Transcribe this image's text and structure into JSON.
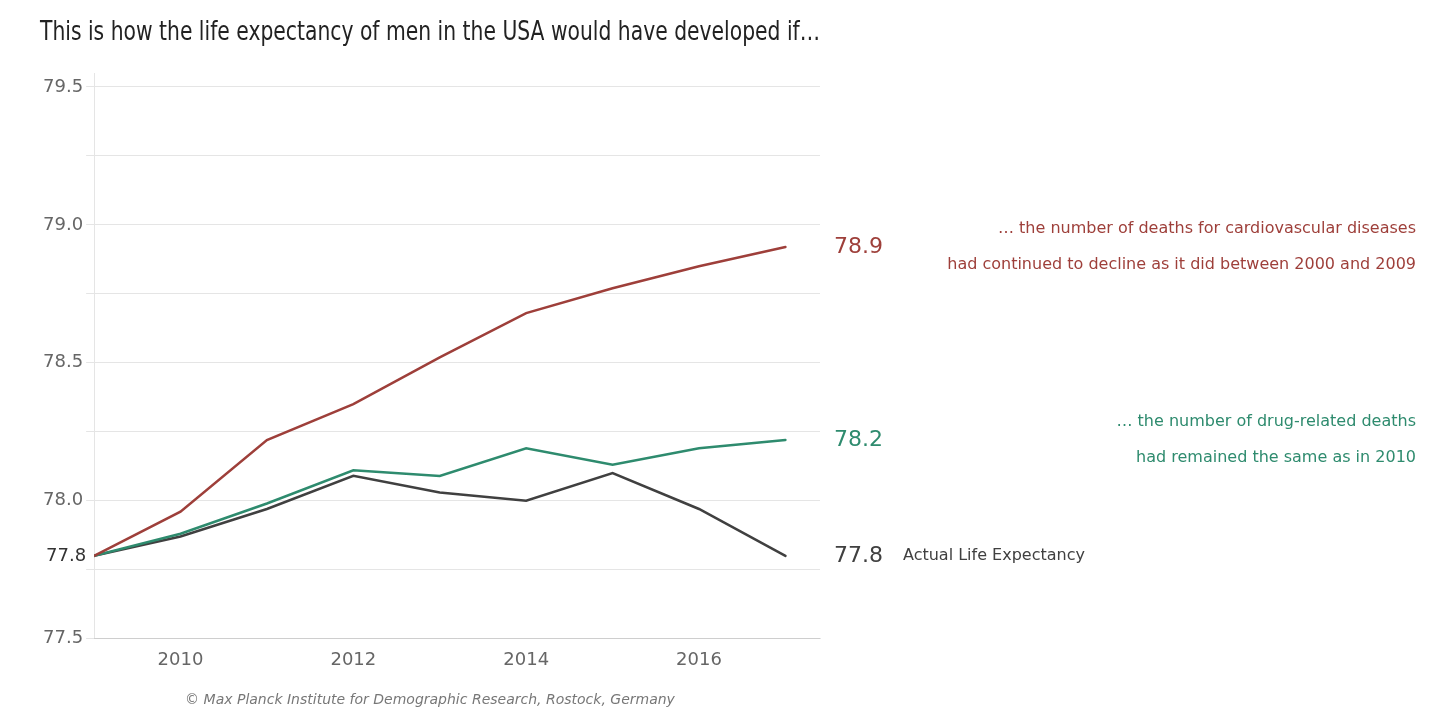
{
  "chart_data": {
    "type": "line",
    "title": "This is how the life expectancy of men in the USA would have developed if…",
    "footer": "© Max Planck Institute for Demographic Research, Rostock, Germany",
    "x": [
      2009,
      2010,
      2011,
      2012,
      2013,
      2014,
      2015,
      2016,
      2017
    ],
    "series": [
      {
        "color": "#9e3f3a",
        "values": [
          77.8,
          77.96,
          78.22,
          78.35,
          78.52,
          78.68,
          78.77,
          78.85,
          78.92
        ],
        "value_labels": [
          null,
          null,
          null,
          null,
          null,
          null,
          null,
          null,
          "78.9"
        ],
        "annotation": [
          "… the number of deaths for cardiovascular diseases",
          "had continued to decline as it did between 2000 and 2009"
        ]
      },
      {
        "color": "#2e8b6e",
        "values": [
          77.8,
          77.88,
          77.99,
          78.11,
          78.09,
          78.19,
          78.13,
          78.19,
          78.22
        ],
        "value_labels": [
          null,
          null,
          null,
          null,
          null,
          null,
          null,
          null,
          "78.2"
        ],
        "annotation": [
          "… the number of drug-related deaths",
          "had remained the same as in 2010"
        ]
      },
      {
        "color": "#404040",
        "values": [
          77.8,
          77.87,
          77.97,
          78.09,
          78.03,
          78.0,
          78.1,
          77.97,
          77.8
        ],
        "value_labels": [
          "77.8",
          null,
          null,
          null,
          null,
          null,
          null,
          null,
          "77.8"
        ],
        "annotation": [
          "Actual Life Expectancy"
        ]
      }
    ],
    "xlim": [
      2009.0,
      2017.4
    ],
    "xticks": [
      2010,
      2012,
      2014,
      2016
    ],
    "ylim": [
      77.5,
      79.55
    ],
    "yticks": [
      77.5,
      {
        "value": 77.75,
        "label": null
      },
      {
        "value": 78.0,
        "label": "78.0"
      },
      {
        "value": 78.25,
        "label": null
      },
      78.5,
      {
        "value": 78.75,
        "label": null
      },
      {
        "value": 79.0,
        "label": "79.0"
      },
      {
        "value": 79.25,
        "label": null
      },
      79.5
    ],
    "grid": "y"
  }
}
